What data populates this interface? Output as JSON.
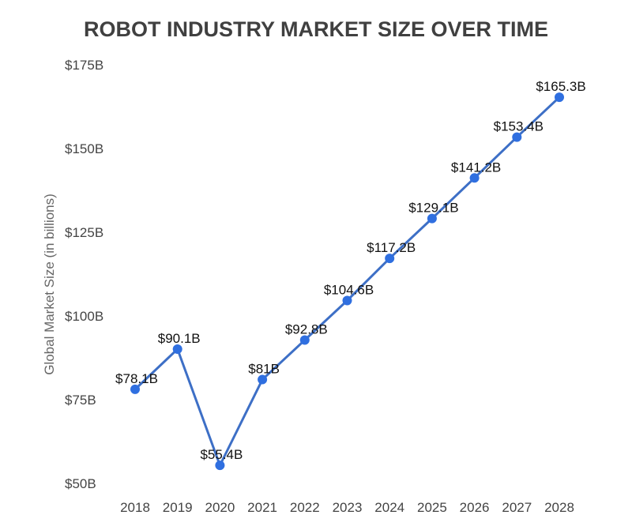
{
  "chart_data": {
    "type": "line",
    "title": "ROBOT INDUSTRY MARKET SIZE OVER TIME",
    "xlabel": "",
    "ylabel": "Global Market Size (in billions)",
    "categories": [
      "2018",
      "2019",
      "2020",
      "2021",
      "2022",
      "2023",
      "2024",
      "2025",
      "2026",
      "2027",
      "2028"
    ],
    "values": [
      78.1,
      90.1,
      55.4,
      81,
      92.8,
      104.6,
      117.2,
      129.1,
      141.2,
      153.4,
      165.3
    ],
    "data_labels": [
      "$78.1B",
      "$90.1B",
      "$55.4B",
      "$81B",
      "$92.8B",
      "$104.6B",
      "$117.2B",
      "$129.1B",
      "$141.2B",
      "$153.4B",
      "$165.3B"
    ],
    "yticks": [
      50,
      75,
      100,
      125,
      150,
      175
    ],
    "ytick_labels": [
      "$50B",
      "$75B",
      "$100B",
      "$125B",
      "$150B",
      "$175B"
    ],
    "ylim": [
      50,
      175
    ],
    "grid": false,
    "legend": "none",
    "colors": {
      "line": "#3d6fc6",
      "marker": "#2f6fe0",
      "title": "#404040"
    }
  }
}
